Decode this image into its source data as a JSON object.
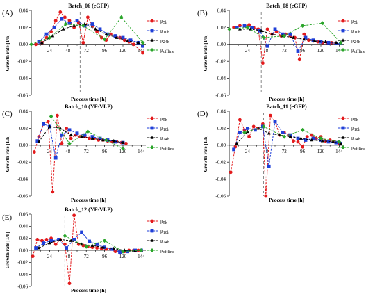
{
  "chart_data": [
    {
      "type": "line",
      "panel": "(A)",
      "title": "Batch_06 (eGFP)",
      "xlabel": "Process time [h]",
      "ylabel": "Growth rate [1/h]",
      "xlim": [
        0,
        150
      ],
      "ylim": [
        -0.06,
        0.04
      ],
      "yticks": [
        "0.04",
        "0.02",
        "0.00",
        "-0.02",
        "-0.04",
        "-0.06"
      ],
      "xticks": [
        "24",
        "48",
        "72",
        "96",
        "120",
        "144"
      ],
      "vline": 64,
      "series": [
        {
          "name": "μ5h",
          "color": "#e31a1c",
          "marker": "circle",
          "x": [
            6,
            14,
            20,
            26,
            32,
            38,
            44,
            50,
            56,
            62,
            68,
            74,
            80,
            86,
            92,
            98,
            104,
            110,
            116,
            122,
            128,
            134,
            146
          ],
          "y": [
            0.0,
            0.002,
            0.008,
            0.015,
            0.028,
            0.038,
            0.032,
            0.028,
            0.02,
            0.026,
            0.002,
            0.032,
            0.022,
            0.015,
            0.008,
            0.005,
            0.012,
            0.01,
            0.008,
            0.005,
            0.003,
            0.0,
            -0.01
          ]
        },
        {
          "name": "μ10h",
          "color": "#1f3fd8",
          "marker": "square",
          "x": [
            10,
            20,
            30,
            40,
            50,
            60,
            70,
            80,
            90,
            100,
            110,
            120,
            130,
            140,
            146
          ],
          "y": [
            0.003,
            0.012,
            0.02,
            0.03,
            0.025,
            0.028,
            0.022,
            0.024,
            0.018,
            0.012,
            0.01,
            0.008,
            0.005,
            0.002,
            -0.002
          ]
        },
        {
          "name": "μ24h",
          "color": "#000000",
          "marker": "triangle",
          "x": [
            14,
            28,
            42,
            56,
            70,
            84,
            98,
            112,
            126,
            140
          ],
          "y": [
            0.002,
            0.01,
            0.018,
            0.022,
            0.024,
            0.018,
            0.012,
            0.008,
            0.004,
            0.002
          ]
        },
        {
          "name": "μoffline",
          "color": "#2aa52a",
          "marker": "diamond",
          "x": [
            0,
            24,
            45,
            68,
            96,
            118,
            146
          ],
          "y": [
            0.0,
            0.008,
            0.024,
            0.022,
            0.006,
            0.032,
            0.002
          ]
        }
      ]
    },
    {
      "type": "line",
      "panel": "(B)",
      "title": "Batch_08 (eGFP)",
      "xlabel": "Process time [h]",
      "ylabel": "Growth rate [1/h]",
      "xlim": [
        0,
        150
      ],
      "ylim": [
        -0.06,
        0.04
      ],
      "yticks": [
        "0.04",
        "0.02",
        "0.00",
        "-0.02",
        "-0.04",
        "-0.06"
      ],
      "xticks": [
        "24",
        "48",
        "72",
        "96",
        "120",
        "144"
      ],
      "vline": 42,
      "series": [
        {
          "name": "μ5h",
          "color": "#e31a1c",
          "marker": "circle",
          "x": [
            6,
            14,
            20,
            26,
            32,
            38,
            44,
            50,
            56,
            62,
            68,
            74,
            80,
            86,
            92,
            98,
            104,
            110,
            116,
            122,
            128,
            134,
            140,
            146
          ],
          "y": [
            0.02,
            0.022,
            0.022,
            0.023,
            0.02,
            0.018,
            -0.022,
            0.018,
            0.012,
            0.015,
            0.01,
            0.012,
            0.01,
            0.008,
            -0.018,
            0.012,
            0.005,
            0.004,
            0.003,
            0.002,
            0.002,
            0.002,
            0.001,
            0.001
          ]
        },
        {
          "name": "μ10h",
          "color": "#1f3fd8",
          "marker": "square",
          "x": [
            10,
            20,
            30,
            40,
            50,
            60,
            70,
            80,
            90,
            100,
            110,
            120,
            130,
            140,
            146
          ],
          "y": [
            0.02,
            0.022,
            0.02,
            0.016,
            -0.002,
            0.018,
            0.012,
            0.012,
            -0.008,
            0.008,
            0.005,
            0.003,
            0.002,
            0.001,
            0.001
          ]
        },
        {
          "name": "μ24h",
          "color": "#000000",
          "marker": "triangle",
          "x": [
            14,
            28,
            42,
            56,
            70,
            84,
            98,
            112,
            126,
            140
          ],
          "y": [
            0.018,
            0.018,
            0.016,
            0.012,
            0.01,
            0.008,
            0.006,
            0.004,
            0.003,
            0.002
          ]
        },
        {
          "name": "μoffline",
          "color": "#2aa52a",
          "marker": "diamond",
          "x": [
            0,
            24,
            45,
            72,
            96,
            122,
            146
          ],
          "y": [
            0.018,
            0.02,
            0.008,
            0.01,
            0.022,
            0.025,
            0.002
          ]
        }
      ]
    },
    {
      "type": "line",
      "panel": "(C)",
      "title": "Batch_10 (YF-VLP)",
      "xlabel": "Process time [h]",
      "ylabel": "Growth rate [1/h]",
      "xlim": [
        0,
        150
      ],
      "ylim": [
        -0.06,
        0.04
      ],
      "yticks": [
        "0.04",
        "0.02",
        "0.00",
        "-0.02",
        "-0.04",
        "-0.06"
      ],
      "xticks": [
        "24",
        "48",
        "72",
        "96",
        "120",
        "144"
      ],
      "vline": 26,
      "series": [
        {
          "name": "μ5h",
          "color": "#e31a1c",
          "marker": "circle",
          "x": [
            4,
            10,
            16,
            22,
            28,
            34,
            40,
            46,
            52,
            58,
            64,
            70,
            76,
            82,
            88,
            94,
            100,
            106,
            112,
            118,
            124
          ],
          "y": [
            -0.008,
            0.01,
            0.025,
            0.028,
            -0.055,
            0.035,
            0.002,
            0.02,
            0.008,
            0.012,
            0.01,
            0.01,
            0.008,
            0.008,
            0.006,
            0.006,
            0.005,
            0.004,
            0.004,
            0.003,
            0.002
          ]
        },
        {
          "name": "μ10h",
          "color": "#1f3fd8",
          "marker": "square",
          "x": [
            8,
            16,
            24,
            32,
            40,
            50,
            60,
            70,
            80,
            90,
            100,
            110,
            120
          ],
          "y": [
            0.005,
            0.025,
            0.022,
            -0.015,
            0.012,
            0.018,
            0.014,
            0.012,
            0.01,
            0.008,
            0.006,
            0.004,
            0.003
          ]
        },
        {
          "name": "μ24h",
          "color": "#000000",
          "marker": "triangle",
          "x": [
            10,
            24,
            38,
            52,
            66,
            80,
            94,
            108,
            120
          ],
          "y": [
            0.004,
            0.022,
            0.02,
            0.012,
            0.01,
            0.008,
            0.006,
            0.005,
            0.003
          ]
        },
        {
          "name": "μoffline",
          "color": "#2aa52a",
          "marker": "diamond",
          "x": [
            26,
            50,
            74,
            98,
            120
          ],
          "y": [
            0.034,
            0.002,
            0.016,
            0.006,
            -0.004
          ]
        }
      ]
    },
    {
      "type": "line",
      "panel": "(D)",
      "title": "Batch_11 (eGFP)",
      "xlabel": "Process time [h]",
      "ylabel": "Growth rate [1/h]",
      "xlim": [
        0,
        150
      ],
      "ylim": [
        -0.06,
        0.04
      ],
      "yticks": [
        "0.04",
        "0.02",
        "0.00",
        "-0.02",
        "-0.04",
        "-0.06"
      ],
      "xticks": [
        "24",
        "48",
        "72",
        "96",
        "120",
        "144"
      ],
      "vline": 45,
      "series": [
        {
          "name": "μ5h",
          "color": "#e31a1c",
          "marker": "circle",
          "x": [
            2,
            8,
            14,
            20,
            26,
            32,
            38,
            44,
            48,
            54,
            60,
            66,
            72,
            78,
            84,
            90,
            96,
            102,
            108,
            114,
            120,
            126,
            132,
            138,
            144
          ],
          "y": [
            -0.032,
            -0.002,
            0.03,
            0.018,
            0.01,
            0.022,
            0.02,
            0.025,
            -0.06,
            0.035,
            0.028,
            0.012,
            0.015,
            0.012,
            0.005,
            0.004,
            -0.002,
            0.01,
            0.012,
            0.008,
            0.01,
            0.005,
            0.006,
            0.004,
            0.002
          ]
        },
        {
          "name": "μ10h",
          "color": "#1f3fd8",
          "marker": "square",
          "x": [
            6,
            14,
            24,
            34,
            44,
            52,
            60,
            70,
            80,
            90,
            100,
            110,
            120,
            130,
            140,
            146
          ],
          "y": [
            -0.005,
            0.015,
            0.02,
            0.018,
            0.022,
            -0.025,
            0.028,
            0.015,
            0.012,
            0.008,
            0.006,
            0.008,
            0.006,
            0.004,
            0.003,
            0.002
          ]
        },
        {
          "name": "μ24h",
          "color": "#000000",
          "marker": "triangle",
          "x": [
            10,
            24,
            38,
            52,
            66,
            80,
            94,
            108,
            122,
            136,
            146
          ],
          "y": [
            0.002,
            0.016,
            0.02,
            0.014,
            0.012,
            0.01,
            0.008,
            0.006,
            0.005,
            0.004,
            0.002
          ]
        },
        {
          "name": "μoffline",
          "color": "#2aa52a",
          "marker": "diamond",
          "x": [
            20,
            45,
            72,
            96,
            120,
            144
          ],
          "y": [
            0.015,
            0.022,
            0.01,
            0.018,
            0.008,
            0.004
          ]
        }
      ]
    },
    {
      "type": "line",
      "panel": "(E)",
      "title": "Batch_12 (YF-VLP)",
      "xlabel": "Process time [h]",
      "ylabel": "Growth rate [1/h]",
      "xlim": [
        0,
        150
      ],
      "ylim": [
        -0.06,
        0.06
      ],
      "yticks": [
        "0.06",
        "0.04",
        "0.02",
        "0.00",
        "-0.02",
        "-0.04",
        "-0.06"
      ],
      "xticks": [
        "24",
        "48",
        "72",
        "96",
        "120",
        "144"
      ],
      "vline": 44,
      "series": [
        {
          "name": "μ5h",
          "color": "#e31a1c",
          "marker": "circle",
          "x": [
            2,
            8,
            14,
            20,
            26,
            32,
            38,
            44,
            50,
            56,
            62,
            68,
            74,
            80,
            86,
            92,
            98,
            104,
            110,
            116,
            122,
            128,
            134,
            140
          ],
          "y": [
            -0.01,
            0.018,
            0.016,
            0.018,
            0.02,
            0.01,
            0.018,
            0.01,
            -0.055,
            0.058,
            0.01,
            0.008,
            0.006,
            0.005,
            0.004,
            0.003,
            0.002,
            0.002,
            -0.002,
            -0.003,
            -0.002,
            0.0,
            0.0,
            0.0
          ]
        },
        {
          "name": "μ10h",
          "color": "#1f3fd8",
          "marker": "square",
          "x": [
            6,
            16,
            26,
            36,
            46,
            56,
            66,
            76,
            86,
            96,
            106,
            116,
            126,
            136,
            144
          ],
          "y": [
            0.004,
            0.012,
            0.016,
            0.018,
            0.004,
            0.018,
            0.03,
            0.015,
            0.01,
            0.005,
            0.002,
            -0.003,
            -0.002,
            0.0,
            0.0
          ]
        },
        {
          "name": "μ24h",
          "color": "#000000",
          "marker": "triangle",
          "x": [
            10,
            24,
            38,
            52,
            66,
            80,
            94,
            108,
            122,
            136,
            144
          ],
          "y": [
            0.004,
            0.012,
            0.018,
            0.016,
            0.01,
            0.008,
            0.005,
            0.003,
            0.0,
            -0.001,
            0.0
          ]
        },
        {
          "name": "μoffline",
          "color": "#2aa52a",
          "marker": "diamond",
          "x": [
            44,
            72,
            96,
            120,
            144
          ],
          "y": [
            0.024,
            0.006,
            0.016,
            -0.002,
            0.0
          ]
        }
      ]
    }
  ],
  "legend_sub": [
    "5h",
    "10h",
    "24h",
    "offline"
  ],
  "legend_mu": "μ"
}
